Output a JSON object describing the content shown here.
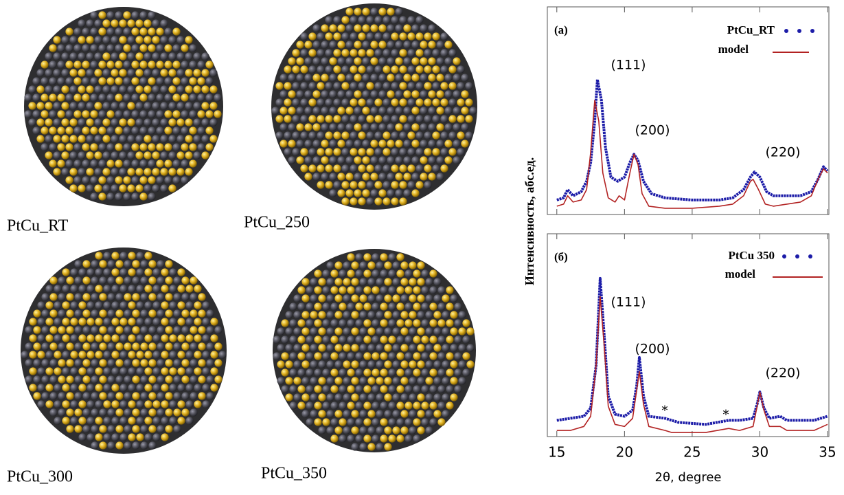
{
  "images": [
    {
      "label": "PtCu_RT"
    },
    {
      "label": "PtCu_250"
    },
    {
      "label": "PtCu_300"
    },
    {
      "label": "PtCu_350"
    }
  ],
  "chart_data": [
    {
      "type": "line",
      "panel_label": "(a)",
      "ylabel": "Интенсивность, абс.ед.",
      "xlim": [
        14.3,
        35.1
      ],
      "ylim": [
        0,
        10
      ],
      "annotations": [
        "(111)",
        "(200)",
        "(220)"
      ],
      "series": [
        {
          "name": "PtCu_RT",
          "color": "#1c1ca8",
          "style": "dots",
          "x": [
            15,
            15.5,
            15.8,
            16.2,
            16.8,
            17.2,
            17.5,
            17.8,
            18,
            18.3,
            18.6,
            19,
            19.5,
            20,
            20.4,
            20.7,
            21,
            21.4,
            22,
            23,
            25,
            27,
            28,
            28.8,
            29.3,
            29.6,
            30,
            30.5,
            31,
            32,
            33,
            33.8,
            34.3,
            34.7,
            35
          ],
          "values": [
            0.7,
            0.8,
            1.2,
            0.9,
            1.1,
            1.6,
            2.5,
            4.5,
            6.5,
            5.5,
            3.2,
            1.8,
            1.6,
            1.8,
            2.5,
            2.9,
            2.6,
            1.6,
            1.0,
            0.8,
            0.7,
            0.7,
            0.8,
            1.2,
            1.8,
            2.05,
            1.8,
            1.1,
            0.9,
            0.9,
            0.9,
            1.1,
            1.7,
            2.3,
            2.1
          ]
        },
        {
          "name": "model",
          "color": "#b22222",
          "style": "line",
          "x": [
            15,
            15.5,
            15.8,
            16.2,
            16.8,
            17.2,
            17.5,
            17.8,
            18.1,
            18.4,
            18.8,
            19.3,
            19.6,
            20,
            20.4,
            20.7,
            21,
            21.3,
            21.8,
            23,
            25,
            27,
            28,
            28.8,
            29.3,
            29.5,
            29.9,
            30.4,
            31,
            32,
            33,
            33.8,
            34.3,
            34.7,
            35
          ],
          "values": [
            0.4,
            0.5,
            0.9,
            0.6,
            0.7,
            1.2,
            3.0,
            5.5,
            4.5,
            2.0,
            0.8,
            0.6,
            0.9,
            0.7,
            2.0,
            2.9,
            2.4,
            1.0,
            0.4,
            0.3,
            0.3,
            0.4,
            0.5,
            0.9,
            1.6,
            1.7,
            1.2,
            0.5,
            0.4,
            0.5,
            0.6,
            0.9,
            1.7,
            2.2,
            2.0
          ]
        }
      ]
    },
    {
      "type": "line",
      "panel_label": "(б)",
      "xlabel": "2θ, degree",
      "xlim": [
        14.3,
        35.1
      ],
      "ylim": [
        0,
        10
      ],
      "xticks": [
        15,
        20,
        25,
        30,
        35
      ],
      "annotations": [
        "(111)",
        "(200)",
        "(220)",
        "*",
        "*"
      ],
      "series": [
        {
          "name": "PtCu 350",
          "color": "#1c1ca8",
          "style": "dots",
          "x": [
            15,
            16,
            17,
            17.5,
            17.9,
            18.2,
            18.5,
            18.8,
            19.3,
            20,
            20.6,
            20.9,
            21.1,
            21.4,
            21.8,
            23,
            24,
            26,
            27.7,
            28.5,
            29.5,
            29.8,
            30,
            30.3,
            30.7,
            31.5,
            32,
            34,
            35
          ],
          "values": [
            0.8,
            0.9,
            1.0,
            1.4,
            3.5,
            7.8,
            5.0,
            2.0,
            1.1,
            1.0,
            1.3,
            2.5,
            3.9,
            2.0,
            1.0,
            0.9,
            0.7,
            0.6,
            0.8,
            0.8,
            0.9,
            1.6,
            2.2,
            1.4,
            0.9,
            1.0,
            0.8,
            0.8,
            1.0
          ]
        },
        {
          "name": "model",
          "color": "#b22222",
          "style": "line",
          "x": [
            15,
            16,
            17,
            17.5,
            17.9,
            18.2,
            18.5,
            18.8,
            19.3,
            20,
            20.6,
            20.9,
            21.1,
            21.4,
            21.8,
            23,
            23.5,
            26,
            27.7,
            28.5,
            29.5,
            29.8,
            30,
            30.3,
            30.7,
            31.5,
            32,
            34,
            35
          ],
          "values": [
            0.3,
            0.3,
            0.5,
            1.0,
            3.5,
            6.9,
            4.5,
            1.5,
            0.6,
            0.5,
            0.9,
            2.3,
            3.2,
            1.6,
            0.5,
            0.3,
            0.2,
            0.2,
            0.4,
            0.3,
            0.5,
            1.5,
            2.2,
            1.3,
            0.5,
            0.5,
            0.3,
            0.3,
            0.6
          ]
        }
      ]
    }
  ]
}
